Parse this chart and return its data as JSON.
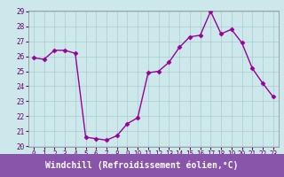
{
  "x": [
    0,
    1,
    2,
    3,
    4,
    5,
    6,
    7,
    8,
    9,
    10,
    11,
    12,
    13,
    14,
    15,
    16,
    17,
    18,
    19,
    20,
    21,
    22,
    23
  ],
  "y": [
    25.9,
    25.8,
    26.4,
    26.4,
    26.2,
    20.6,
    20.5,
    20.4,
    20.7,
    21.5,
    21.9,
    24.9,
    25.0,
    25.6,
    26.6,
    27.3,
    27.4,
    29.0,
    27.5,
    27.8,
    26.9,
    25.2,
    24.2,
    23.3
  ],
  "line_color": "#990099",
  "marker": "D",
  "marker_size": 2.5,
  "bg_color": "#cce8ea",
  "grid_color": "#aacccc",
  "xlabel": "Windchill (Refroidissement éolien,°C)",
  "xlabel_bg": "#8855aa",
  "xlabel_fg": "#ffffff",
  "ylim": [
    20,
    29
  ],
  "xlim": [
    -0.5,
    23.5
  ],
  "yticks": [
    20,
    21,
    22,
    23,
    24,
    25,
    26,
    27,
    28,
    29
  ],
  "xticks": [
    0,
    1,
    2,
    3,
    4,
    5,
    6,
    7,
    8,
    9,
    10,
    11,
    12,
    13,
    14,
    15,
    16,
    17,
    18,
    19,
    20,
    21,
    22,
    23
  ],
  "tick_fontsize": 5.5,
  "xlabel_fontsize": 7.0,
  "line_width": 1.0,
  "spine_color": "#888888",
  "tick_color": "#660066"
}
